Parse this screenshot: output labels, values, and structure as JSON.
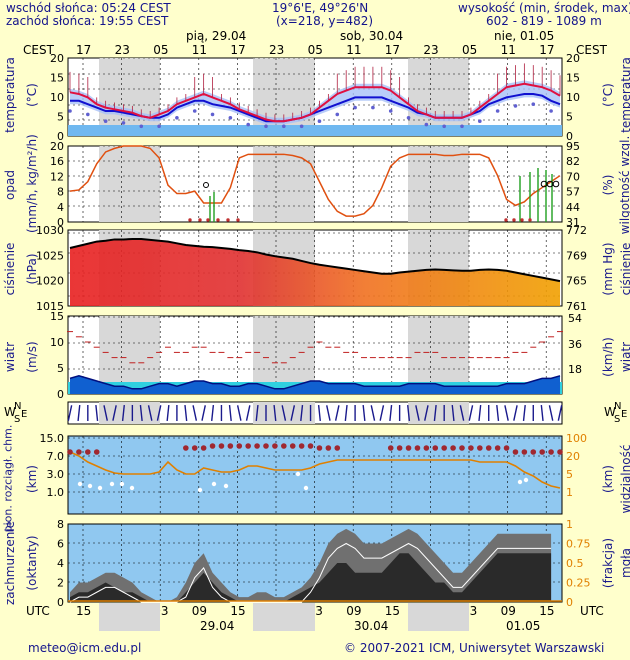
{
  "header": {
    "sunrise": "wschód słońca: 05:24 CEST",
    "sunset": "zachód słońca: 19:55 CEST",
    "coords": "19°6'E, 49°26'N",
    "grid": "(x=218,  y=482)",
    "elev_label": "wysokość (min, środek, max)",
    "elev_values": "602 - 819 - 1089 m"
  },
  "timeaxis": {
    "top_label_left": "CEST",
    "top_label_right": "CEST",
    "bottom_label_left": "UTC",
    "bottom_label_right": "UTC",
    "top_hours": [
      "17",
      "23",
      "05",
      "11",
      "17",
      "23",
      "05",
      "11",
      "17",
      "23",
      "05",
      "11",
      "17"
    ],
    "bottom_hours": [
      "15",
      "21",
      "03",
      "09",
      "15",
      "21",
      "03",
      "09",
      "15",
      "21",
      "03",
      "09",
      "15"
    ],
    "top_dates": [
      "pią, 29.04",
      "sob, 30.04",
      "nie, 01.05"
    ],
    "bottom_dates": [
      "29.04",
      "30.04",
      "01.05"
    ]
  },
  "panels": {
    "temp": {
      "left_label": "temperatura",
      "left_unit": "(°C)",
      "right_label": "temperatura",
      "right_unit": "(°C)"
    },
    "precip": {
      "left_label": "opad",
      "left_unit": "(mm/h, kg/m²/h)",
      "right_label": "wilgotność wzgl.",
      "right_unit": "(%)"
    },
    "pressure": {
      "left_label": "ciśnienie",
      "left_unit": "(hPa)",
      "right_label": "ciśnienie",
      "right_unit": "(mm Hg)"
    },
    "wind": {
      "left_label": "wiatr",
      "left_unit": "(m/s)",
      "right_label": "wiatr",
      "right_unit": "(km/h)"
    },
    "dir": {
      "compass_left": "W",
      "compass_left2": "E",
      "compass_n": "N",
      "compass_s": "S"
    },
    "visibility": {
      "left_label": "pion. rozciągł. chm.",
      "left_unit": "(km)",
      "right_label": "widzialność",
      "right_unit": "(km)"
    },
    "cloud": {
      "left_label": "zachmurzenie",
      "left_unit": "(oktanty)",
      "right_label": "mgła",
      "right_unit": "(frakcja)"
    }
  },
  "footer": {
    "email": "meteo@icm.edu.pl",
    "copyright": "© 2007-2021 ICM, Uniwersytet Warszawski"
  },
  "colors": {
    "background": "#ffffcc",
    "label": "#1a1a8c",
    "night": "#d8d8d8"
  },
  "chart_data": [
    {
      "type": "line",
      "name": "temperature",
      "left_ticks": [
        "20",
        "15",
        "10",
        "5",
        "0"
      ],
      "right_ticks": [
        "20",
        "15",
        "10",
        "5",
        "0"
      ],
      "ylim": [
        -1,
        20
      ],
      "series": [
        {
          "name": "temp",
          "values": [
            10.5,
            10,
            9,
            7,
            6,
            5.5,
            5,
            4.5,
            3.5,
            3,
            4,
            5,
            7,
            8,
            9,
            10,
            9,
            8,
            7,
            5.5,
            4.5,
            3.5,
            2.5,
            2,
            2,
            2.5,
            3,
            4,
            6,
            8,
            10,
            11,
            12,
            12,
            12,
            12,
            11,
            9,
            7,
            5,
            4,
            3,
            3,
            3,
            3,
            4,
            6,
            8,
            10,
            12,
            12.5,
            13,
            12.5,
            12,
            11,
            9.5
          ]
        },
        {
          "name": "dew",
          "values": [
            8,
            8,
            7,
            6,
            5,
            5,
            4.5,
            4,
            3.5,
            3,
            3,
            4,
            6,
            7,
            8,
            8,
            7,
            6.5,
            6,
            5,
            4,
            3,
            2,
            2,
            2,
            2.5,
            3,
            4,
            5,
            6,
            7,
            8,
            9,
            9,
            9,
            9,
            8,
            7,
            6,
            4.5,
            4,
            3,
            3,
            3,
            3,
            4,
            5,
            7,
            8,
            9,
            9.5,
            10,
            10,
            9.5,
            8,
            7
          ]
        }
      ]
    },
    {
      "type": "line",
      "name": "precipitation_humidity",
      "left_ticks": [
        "20",
        "16",
        "12",
        "8",
        "4",
        "0"
      ],
      "right_ticks": [
        "95",
        "82",
        "70",
        "57",
        "44",
        "31"
      ],
      "series": [
        {
          "name": "humidity",
          "values": [
            57,
            58,
            65,
            80,
            90,
            93,
            95,
            95,
            95,
            93,
            85,
            62,
            55,
            55,
            57,
            47,
            47,
            47,
            60,
            85,
            88,
            88,
            88,
            88,
            88,
            87,
            85,
            80,
            65,
            50,
            40,
            36,
            36,
            38,
            45,
            60,
            78,
            85,
            88,
            88,
            88,
            88,
            87,
            87,
            88,
            88,
            88,
            85,
            70,
            50,
            45,
            48,
            55,
            60,
            65,
            70
          ]
        },
        {
          "name": "precip",
          "values": [
            0,
            0,
            0,
            0,
            0,
            0,
            0,
            0,
            0,
            0,
            0,
            0,
            0,
            0,
            0,
            0,
            0,
            0,
            0,
            0,
            0,
            0,
            0,
            0,
            0,
            0,
            0,
            0,
            0,
            0,
            0,
            0,
            0,
            0,
            0,
            0,
            0,
            0,
            0,
            0,
            0,
            0,
            0,
            0,
            0,
            0,
            0,
            0,
            0,
            0,
            0,
            0,
            0,
            0,
            0,
            0
          ]
        }
      ]
    },
    {
      "type": "area",
      "name": "pressure",
      "left_ticks": [
        "1030",
        "1025",
        "1020",
        "1015"
      ],
      "right_ticks": [
        "772",
        "769",
        "765",
        "761"
      ],
      "series": [
        {
          "name": "pressure",
          "values": [
            1026.5,
            1027,
            1027.5,
            1028,
            1028.2,
            1028.5,
            1028.5,
            1028.6,
            1028.6,
            1028.4,
            1028.2,
            1028,
            1027.6,
            1027.2,
            1027,
            1026.8,
            1026.7,
            1026.5,
            1026.3,
            1026,
            1025.8,
            1025.5,
            1025,
            1024.6,
            1024.3,
            1024,
            1023.5,
            1023,
            1022.6,
            1022.3,
            1022,
            1021.7,
            1021.4,
            1021.1,
            1020.8,
            1020.5,
            1020.5,
            1020.8,
            1021,
            1021.2,
            1021.4,
            1021.5,
            1021.4,
            1021.3,
            1021.2,
            1021.2,
            1021.4,
            1021.5,
            1021.4,
            1021.2,
            1020.8,
            1020.4,
            1020,
            1019.6,
            1019.2,
            1018.8
          ]
        }
      ]
    },
    {
      "type": "area",
      "name": "wind",
      "left_ticks": [
        "15",
        "10",
        "5",
        "0"
      ],
      "right_ticks": [
        "54",
        "36",
        "18"
      ],
      "series": [
        {
          "name": "wind_mean",
          "values": [
            3,
            3.5,
            3,
            2.5,
            2,
            1.5,
            1.5,
            1,
            1,
            1.5,
            2,
            2,
            1.5,
            2,
            2.5,
            2.5,
            2,
            2,
            1.5,
            1.5,
            2,
            2,
            1.5,
            1,
            1,
            1.5,
            2,
            2.5,
            2.5,
            2,
            2,
            2,
            2,
            1.5,
            1.5,
            1.5,
            1.5,
            1.5,
            2,
            2,
            2,
            2,
            1.5,
            1.5,
            1.5,
            1.5,
            1.5,
            1.5,
            1.5,
            2,
            2,
            2,
            2.5,
            3,
            3,
            3.5
          ]
        },
        {
          "name": "gusts",
          "values": [
            12,
            11,
            10,
            9,
            8,
            7,
            7,
            6,
            6,
            7,
            8,
            9,
            8,
            8,
            9,
            9,
            8,
            8,
            7,
            7,
            8,
            8,
            7,
            6,
            6,
            7,
            8,
            9,
            10,
            9,
            9,
            8,
            8,
            7,
            7,
            7,
            7,
            7,
            7,
            8,
            8,
            8,
            7,
            7,
            7,
            7,
            7,
            7,
            7,
            7,
            8,
            8,
            9,
            10,
            11,
            12
          ]
        }
      ]
    },
    {
      "type": "line",
      "name": "visibility_cloudbase",
      "left_ticks": [
        "15.0",
        "7.0",
        "3.0",
        "1.0"
      ],
      "right_ticks": [
        "100",
        "20",
        "5",
        "1"
      ]
    },
    {
      "type": "area",
      "name": "cloud_cover",
      "left_ticks": [
        "8",
        "6",
        "4",
        "2",
        "0"
      ],
      "right_ticks": [
        "1",
        "0.75",
        "0.5",
        "0.25",
        "0"
      ],
      "series": [
        {
          "name": "total_cloud",
          "values": [
            1,
            2,
            2,
            2.5,
            3,
            3,
            2.5,
            2,
            1,
            0.5,
            0,
            0,
            0.5,
            2,
            4,
            5,
            3,
            2,
            1,
            0.5,
            0.5,
            1,
            1,
            0.5,
            0.5,
            1,
            1.5,
            2.5,
            4,
            6,
            7,
            7.5,
            7,
            6,
            6,
            6,
            6.5,
            7,
            7.5,
            7,
            6,
            5,
            4,
            3,
            3,
            4,
            5,
            6,
            7,
            7,
            7,
            7,
            7,
            7,
            7
          ]
        },
        {
          "name": "low_cloud",
          "values": [
            0.5,
            1,
            1,
            1.5,
            2,
            1.5,
            1,
            1,
            0.5,
            0,
            0,
            0,
            0,
            1,
            2,
            3,
            2,
            1,
            0.5,
            0,
            0,
            0,
            0,
            0,
            0,
            0.5,
            1,
            1.5,
            2,
            3,
            4,
            4,
            3,
            3,
            3,
            3,
            4,
            5,
            5,
            4,
            3,
            2,
            2,
            1,
            1,
            2,
            3,
            4,
            5,
            5,
            5,
            5,
            5,
            5,
            5
          ]
        }
      ]
    }
  ]
}
